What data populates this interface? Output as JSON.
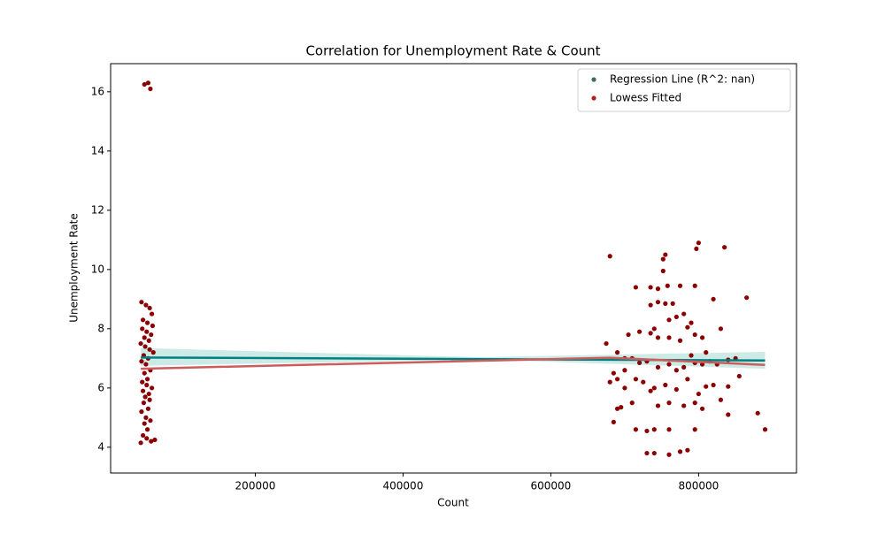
{
  "chart_data": {
    "type": "scatter",
    "title": "Correlation for Unemployment Rate & Count",
    "x_label": "Count",
    "y_label": "Unemployment Rate",
    "xlim": [
      4200,
      932500
    ],
    "ylim": [
      3.13,
      16.95
    ],
    "xticks": [
      200000,
      400000,
      600000,
      800000
    ],
    "yticks": [
      4,
      6,
      8,
      10,
      12,
      14,
      16
    ],
    "legend_position": "upper right",
    "series": [
      {
        "name": "Regression Line (R^2: nan)",
        "color": "#3f6b5c",
        "line_color": "#008080",
        "x": [
          45000,
          890000
        ],
        "values": [
          7.03,
          6.93
        ],
        "ci_x": [
          45000,
          500000,
          890000
        ],
        "ci_lower": [
          6.75,
          6.96,
          6.65
        ],
        "ci_upper": [
          7.35,
          7.04,
          7.22
        ],
        "ci_color": "#cdebe6"
      },
      {
        "name": "Lowess Fitted",
        "color": "#b22222",
        "line_color": "#cd5c5c",
        "x": [
          45000,
          300000,
          680000,
          890000
        ],
        "values": [
          6.65,
          6.8,
          7.02,
          6.78
        ]
      }
    ],
    "points": {
      "color": "#8b0000",
      "x": [
        50000,
        55000,
        58000,
        46000,
        52000,
        57000,
        60000,
        48000,
        54000,
        61000,
        47000,
        53000,
        59000,
        50000,
        56000,
        45000,
        51000,
        57000,
        62000,
        49000,
        55000,
        46000,
        52000,
        58000,
        50000,
        54000,
        47000,
        53000,
        60000,
        48000,
        56000,
        51000,
        57000,
        49000,
        55000,
        46000,
        52000,
        58000,
        50000,
        54000,
        48000,
        53000,
        59000,
        45000,
        64000,
        680000,
        800000,
        797000,
        835000,
        755000,
        752000,
        752000,
        865000,
        715000,
        735000,
        745000,
        758000,
        775000,
        795000,
        820000,
        735000,
        745000,
        755000,
        765000,
        780000,
        760000,
        790000,
        770000,
        740000,
        735000,
        720000,
        705000,
        745000,
        760000,
        775000,
        785000,
        795000,
        805000,
        830000,
        810000,
        790000,
        675000,
        690000,
        700000,
        710000,
        720000,
        730000,
        745000,
        760000,
        770000,
        780000,
        795000,
        805000,
        815000,
        825000,
        840000,
        850000,
        700000,
        690000,
        680000,
        685000,
        715000,
        725000,
        740000,
        755000,
        770000,
        785000,
        800000,
        810000,
        820000,
        840000,
        855000,
        700000,
        710000,
        690000,
        695000,
        735000,
        745000,
        760000,
        780000,
        795000,
        805000,
        830000,
        840000,
        880000,
        890000,
        685000,
        715000,
        730000,
        740000,
        760000,
        795000,
        740000,
        760000,
        775000,
        785000,
        730000
      ],
      "y": [
        16.25,
        16.3,
        16.1,
        8.9,
        8.8,
        8.7,
        8.5,
        8.3,
        8.2,
        8.1,
        8.0,
        7.9,
        7.8,
        7.7,
        7.6,
        7.5,
        7.4,
        7.3,
        7.2,
        7.1,
        7.0,
        6.9,
        6.8,
        6.6,
        6.5,
        6.3,
        6.2,
        6.1,
        6.0,
        5.9,
        5.8,
        5.7,
        5.6,
        5.5,
        5.3,
        5.2,
        5.0,
        4.9,
        4.8,
        4.6,
        4.4,
        4.3,
        4.2,
        4.15,
        4.25,
        10.45,
        10.9,
        10.7,
        10.75,
        10.5,
        10.35,
        9.95,
        9.05,
        9.4,
        9.4,
        9.35,
        9.45,
        9.45,
        9.45,
        9.0,
        8.8,
        8.9,
        8.85,
        8.85,
        8.5,
        8.3,
        8.2,
        8.4,
        8.0,
        7.85,
        7.9,
        7.8,
        7.7,
        7.7,
        7.6,
        8.05,
        7.8,
        7.7,
        8.0,
        7.2,
        7.1,
        7.5,
        7.2,
        7.0,
        7.0,
        6.85,
        6.9,
        6.7,
        6.8,
        6.6,
        6.7,
        6.85,
        6.8,
        6.9,
        6.8,
        6.95,
        7.0,
        6.6,
        6.3,
        6.2,
        6.5,
        6.3,
        6.2,
        6.0,
        6.1,
        5.95,
        6.3,
        5.8,
        6.05,
        6.1,
        6.05,
        6.4,
        6.0,
        5.5,
        5.3,
        5.35,
        5.9,
        5.4,
        5.5,
        5.4,
        5.5,
        5.3,
        5.6,
        5.1,
        5.15,
        4.6,
        4.85,
        4.6,
        4.55,
        4.6,
        4.6,
        4.6,
        3.8,
        3.75,
        3.85,
        3.9,
        3.8
      ]
    }
  }
}
